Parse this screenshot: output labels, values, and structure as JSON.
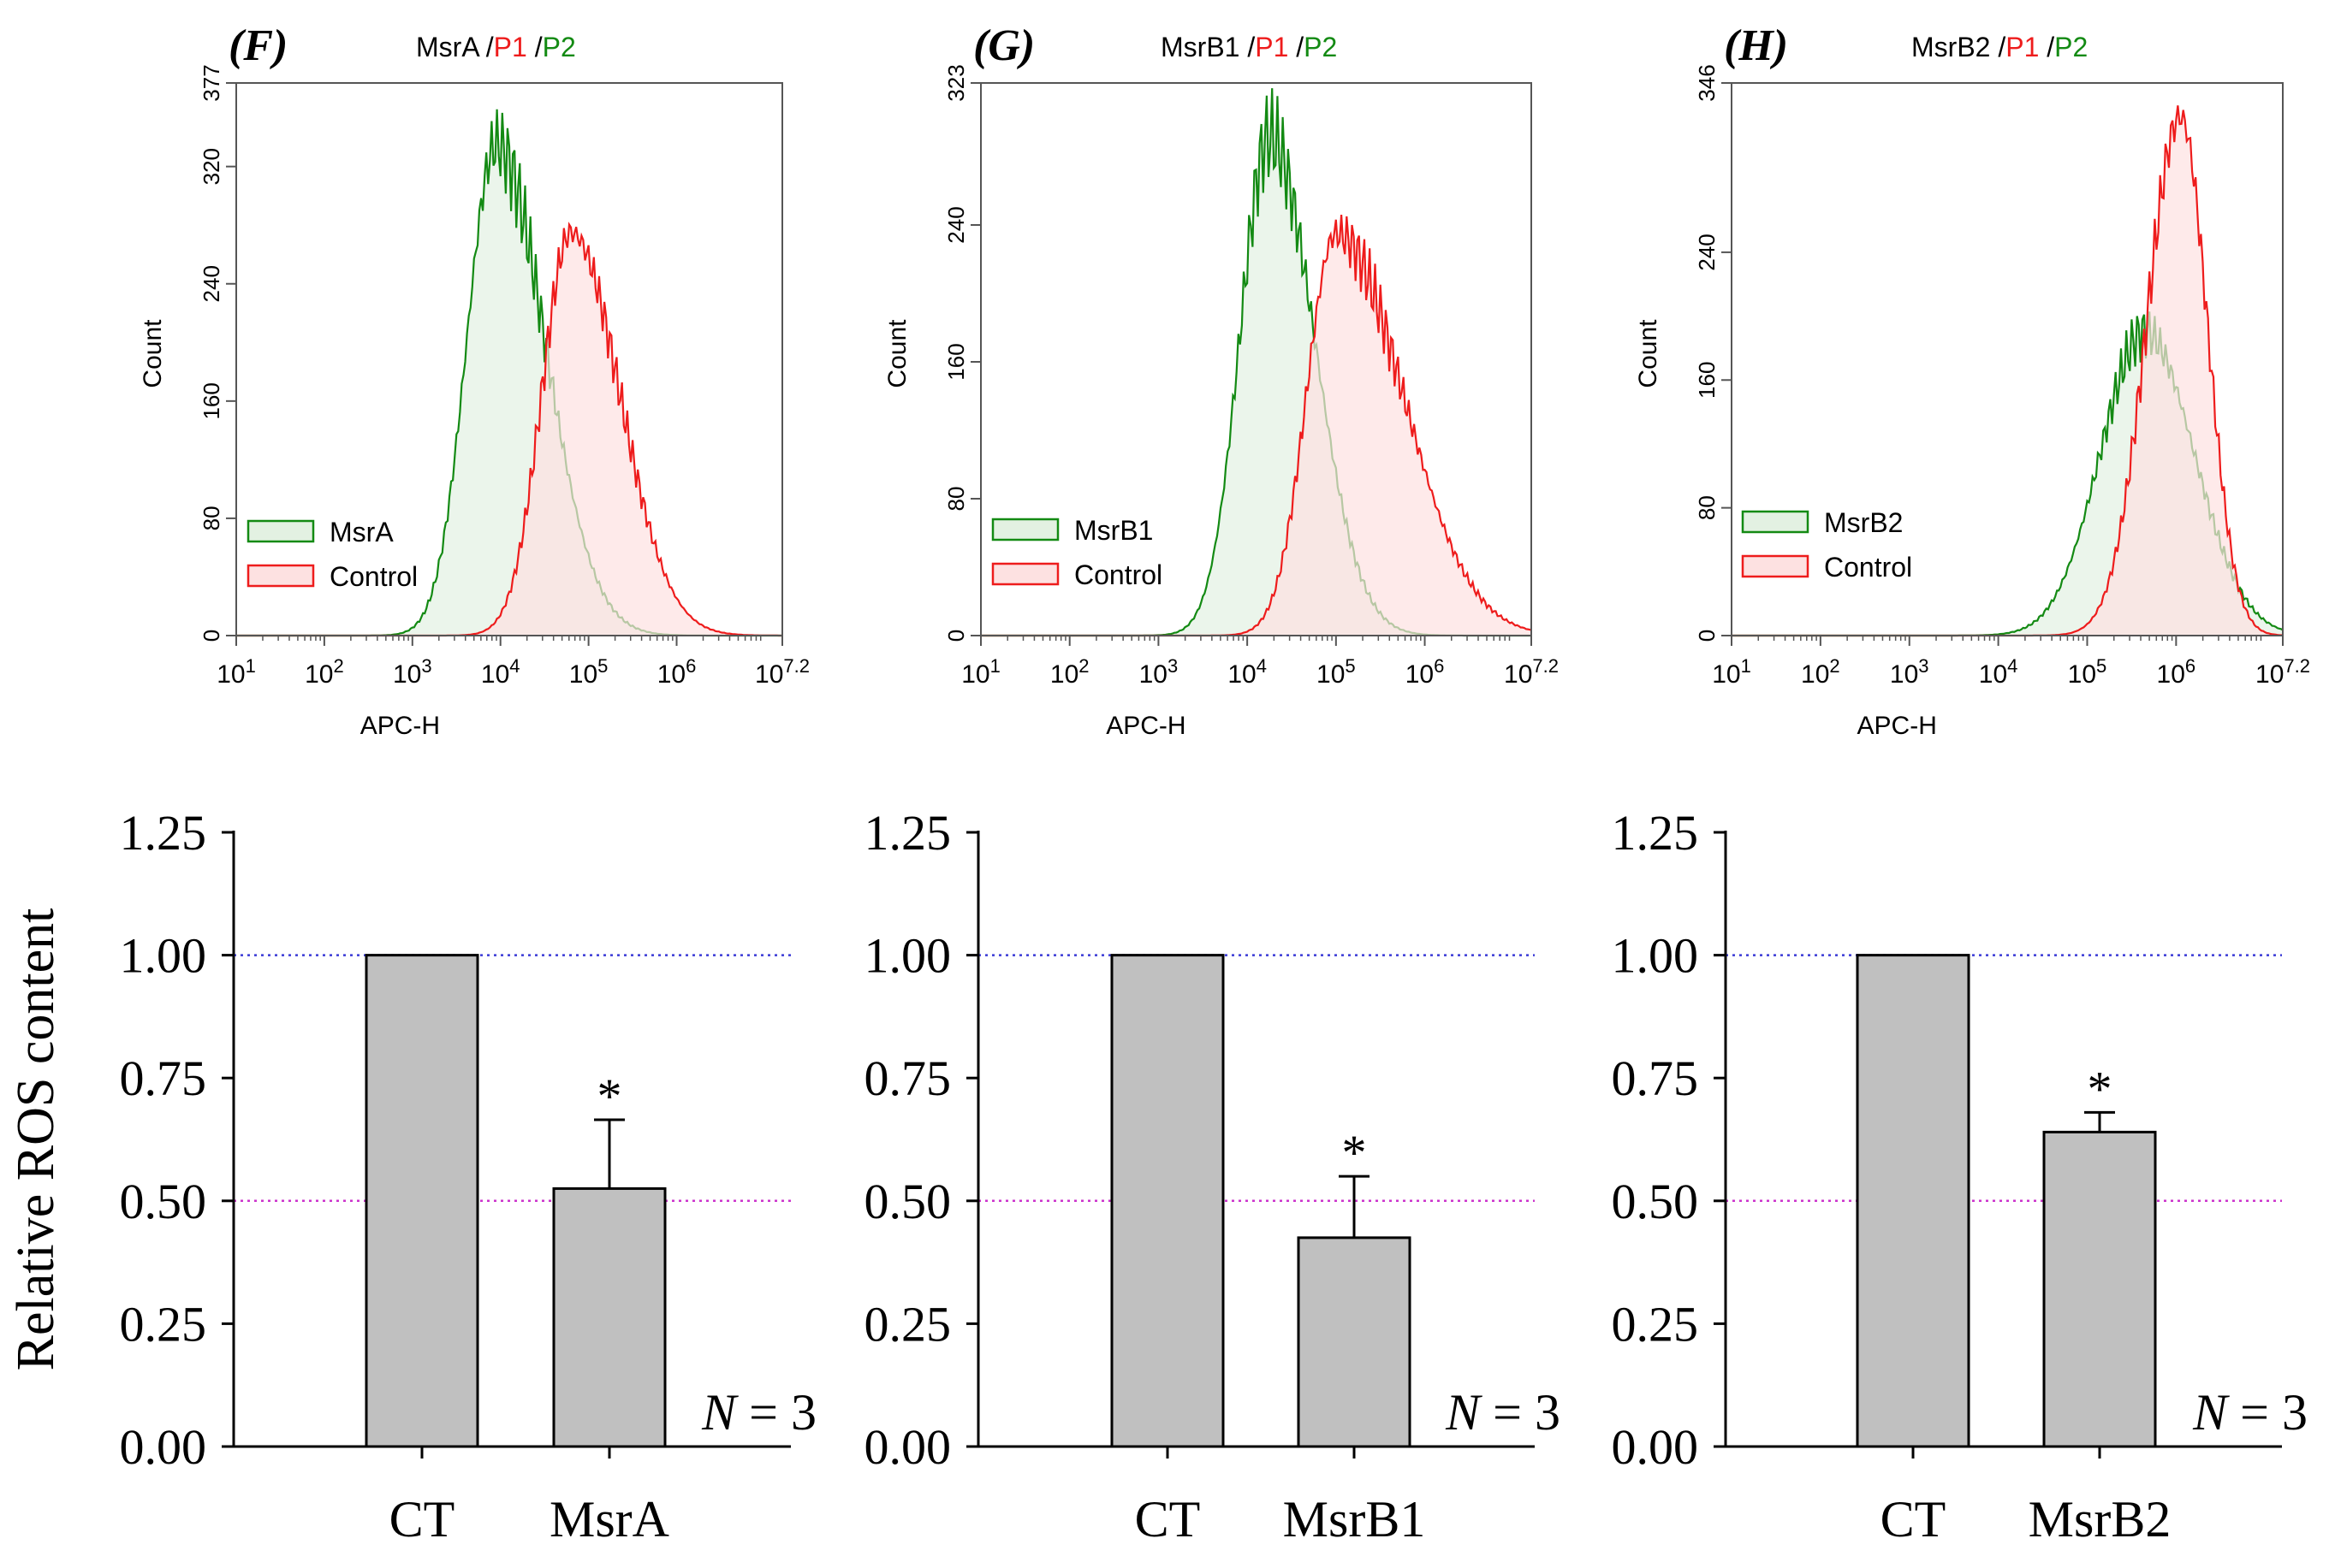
{
  "figure": {
    "row_y_label": "Relative ROS content"
  },
  "chart_data": [
    {
      "type": "histogram",
      "panel_label": "(F)",
      "title_parts": [
        "MsrA",
        " /",
        "P1",
        " /",
        "P2"
      ],
      "xlabel": "APC-H",
      "ylabel": "Count",
      "x_log_range": [
        1,
        7.2
      ],
      "x_tick_exponents": [
        "1",
        "2",
        "3",
        "4",
        "5",
        "6",
        "7.2"
      ],
      "ylim": [
        0,
        377
      ],
      "y_ticks": [
        "0",
        "80",
        "160",
        "240",
        "320",
        "377"
      ],
      "legend": [
        "MsrA",
        "Control"
      ],
      "series": [
        {
          "name": "MsrA",
          "color": "#138a13",
          "fill": "#e3f1e2",
          "peak_log": 3.95,
          "peak_count": 335,
          "left_width": 0.33,
          "right_width": 0.55
        },
        {
          "name": "Control",
          "color": "#ee1c1c",
          "fill": "#fde1e1",
          "peak_log": 4.8,
          "peak_count": 275,
          "left_width": 0.33,
          "right_width": 0.55
        }
      ]
    },
    {
      "type": "histogram",
      "panel_label": "(G)",
      "title_parts": [
        "MsrB1",
        " /",
        "P1",
        " /",
        "P2"
      ],
      "xlabel": "APC-H",
      "ylabel": "Count",
      "x_log_range": [
        1,
        7.2
      ],
      "x_tick_exponents": [
        "1",
        "2",
        "3",
        "4",
        "5",
        "6",
        "7.2"
      ],
      "ylim": [
        0,
        323
      ],
      "y_ticks": [
        "0",
        "80",
        "160",
        "240",
        "323"
      ],
      "legend": [
        "MsrB1",
        "Control"
      ],
      "series": [
        {
          "name": "MsrB1",
          "color": "#138a13",
          "fill": "#e3f1e2",
          "peak_log": 4.25,
          "peak_count": 292,
          "left_width": 0.33,
          "right_width": 0.5
        },
        {
          "name": "Control",
          "color": "#ee1c1c",
          "fill": "#fde1e1",
          "peak_log": 5.0,
          "peak_count": 235,
          "left_width": 0.33,
          "right_width": 0.75
        }
      ]
    },
    {
      "type": "histogram",
      "panel_label": "(H)",
      "title_parts": [
        "MsrB2",
        " /",
        "P1",
        " /",
        "P2"
      ],
      "xlabel": "APC-H",
      "ylabel": "Count",
      "x_log_range": [
        1,
        7.2
      ],
      "x_tick_exponents": [
        "1",
        "2",
        "3",
        "4",
        "5",
        "6",
        "7.2"
      ],
      "ylim": [
        0,
        346
      ],
      "y_ticks": [
        "0",
        "80",
        "160",
        "240",
        "346"
      ],
      "legend": [
        "MsrB2",
        "Control"
      ],
      "series": [
        {
          "name": "MsrB2",
          "color": "#138a13",
          "fill": "#e3f1e2",
          "peak_log": 5.65,
          "peak_count": 190,
          "left_width": 0.5,
          "right_width": 0.55
        },
        {
          "name": "Control",
          "color": "#ee1c1c",
          "fill": "#fde1e1",
          "peak_log": 6.05,
          "peak_count": 325,
          "left_width": 0.38,
          "right_width": 0.3
        }
      ]
    },
    {
      "type": "bar",
      "categories": [
        "CT",
        "MsrA"
      ],
      "values": [
        1.0,
        0.525
      ],
      "errors": [
        0,
        0.14
      ],
      "significance": [
        "",
        "*"
      ],
      "ylim": [
        0,
        1.25
      ],
      "y_ticks": [
        "0.00",
        "0.25",
        "0.50",
        "0.75",
        "1.00",
        "1.25"
      ],
      "reference_lines": [
        {
          "value": 1.0,
          "color": "#3b3bd6"
        },
        {
          "value": 0.5,
          "color": "#cc33cc"
        }
      ],
      "annotation": [
        "N",
        " = 3"
      ],
      "ylabel": "Relative ROS content"
    },
    {
      "type": "bar",
      "categories": [
        "CT",
        "MsrB1"
      ],
      "values": [
        1.0,
        0.425
      ],
      "errors": [
        0,
        0.125
      ],
      "significance": [
        "",
        "*"
      ],
      "ylim": [
        0,
        1.25
      ],
      "y_ticks": [
        "0.00",
        "0.25",
        "0.50",
        "0.75",
        "1.00",
        "1.25"
      ],
      "reference_lines": [
        {
          "value": 1.0,
          "color": "#3b3bd6"
        },
        {
          "value": 0.5,
          "color": "#cc33cc"
        }
      ],
      "annotation": [
        "N",
        " = 3"
      ],
      "ylabel": ""
    },
    {
      "type": "bar",
      "categories": [
        "CT",
        "MsrB2"
      ],
      "values": [
        1.0,
        0.64
      ],
      "errors": [
        0,
        0.04
      ],
      "significance": [
        "",
        "*"
      ],
      "ylim": [
        0,
        1.25
      ],
      "y_ticks": [
        "0.00",
        "0.25",
        "0.50",
        "0.75",
        "1.00",
        "1.25"
      ],
      "reference_lines": [
        {
          "value": 1.0,
          "color": "#3b3bd6"
        },
        {
          "value": 0.5,
          "color": "#cc33cc"
        }
      ],
      "annotation": [
        "N",
        " = 3"
      ],
      "ylabel": ""
    }
  ]
}
